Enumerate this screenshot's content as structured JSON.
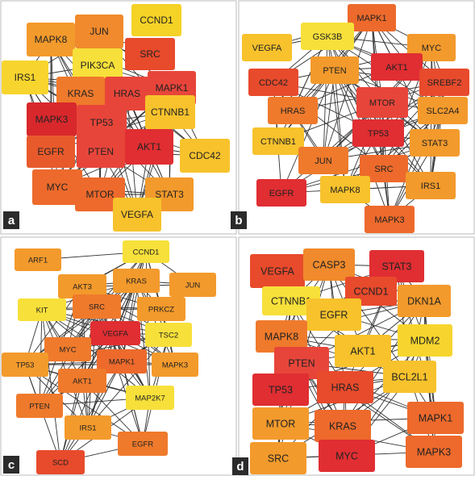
{
  "panels": [
    {
      "label": "a",
      "nodes": [
        {
          "label": "CCND1",
          "color": "#f5d226"
        },
        {
          "label": "MAPK8",
          "color": "#f39a2c"
        },
        {
          "label": "JUN",
          "color": "#f08a2c"
        },
        {
          "label": "SRC",
          "color": "#e84a2c"
        },
        {
          "label": "PIK3CA",
          "color": "#f7e03a"
        },
        {
          "label": "IRS1",
          "color": "#f7d52e"
        },
        {
          "label": "KRAS",
          "color": "#ef7a2c"
        },
        {
          "label": "HRAS",
          "color": "#e8453a"
        },
        {
          "label": "MAPK1",
          "color": "#e8453a"
        },
        {
          "label": "MAPK3",
          "color": "#d8282c"
        },
        {
          "label": "TP53",
          "color": "#e8453a"
        },
        {
          "label": "CTNNB1",
          "color": "#f7c22c"
        },
        {
          "label": "EGFR",
          "color": "#e85a2c"
        },
        {
          "label": "PTEN",
          "color": "#e8453a"
        },
        {
          "label": "AKT1",
          "color": "#e02e32"
        },
        {
          "label": "CDC42",
          "color": "#f7c22c"
        },
        {
          "label": "MYC",
          "color": "#ed6a2c"
        },
        {
          "label": "MTOR",
          "color": "#ed6a2c"
        },
        {
          "label": "STAT3",
          "color": "#f39a2c"
        },
        {
          "label": "VEGFA",
          "color": "#f7c22c"
        }
      ]
    },
    {
      "label": "b",
      "nodes": [
        {
          "label": "MAPK1",
          "color": "#ed6a2c"
        },
        {
          "label": "GSK3B",
          "color": "#f7e03a"
        },
        {
          "label": "VEGFA",
          "color": "#f7c22c"
        },
        {
          "label": "MYC",
          "color": "#f39a2c"
        },
        {
          "label": "PTEN",
          "color": "#f39a2c"
        },
        {
          "label": "AKT1",
          "color": "#e02e32"
        },
        {
          "label": "CDC42",
          "color": "#e84a2c"
        },
        {
          "label": "SREBF2",
          "color": "#e84a2c"
        },
        {
          "label": "HRAS",
          "color": "#ef7a2c"
        },
        {
          "label": "MTOR",
          "color": "#e8453a"
        },
        {
          "label": "SLC2A4",
          "color": "#f39a2c"
        },
        {
          "label": "CTNNB1",
          "color": "#f7c22c"
        },
        {
          "label": "TP53",
          "color": "#e02e32"
        },
        {
          "label": "STAT3",
          "color": "#f39a2c"
        },
        {
          "label": "JUN",
          "color": "#ef7a2c"
        },
        {
          "label": "SRC",
          "color": "#ed6a2c"
        },
        {
          "label": "IRS1",
          "color": "#f39a2c"
        },
        {
          "label": "EGFR",
          "color": "#e02e32"
        },
        {
          "label": "MAPK8",
          "color": "#f7c22c"
        },
        {
          "label": "MAPK3",
          "color": "#ed6a2c"
        }
      ]
    },
    {
      "label": "c",
      "nodes": [
        {
          "label": "CCND1",
          "color": "#f7e03a"
        },
        {
          "label": "ARF1",
          "color": "#f39a2c"
        },
        {
          "label": "KRAS",
          "color": "#f39a2c"
        },
        {
          "label": "AKT3",
          "color": "#f39a2c"
        },
        {
          "label": "JUN",
          "color": "#f39a2c"
        },
        {
          "label": "SRC",
          "color": "#ef7a2c"
        },
        {
          "label": "KIT",
          "color": "#f7e03a"
        },
        {
          "label": "PRKCZ",
          "color": "#f39a2c"
        },
        {
          "label": "VEGFA",
          "color": "#e02e32"
        },
        {
          "label": "TSC2",
          "color": "#f7e03a"
        },
        {
          "label": "MYC",
          "color": "#ef7a2c"
        },
        {
          "label": "TP53",
          "color": "#f39a2c"
        },
        {
          "label": "MAPK1",
          "color": "#ed6a2c"
        },
        {
          "label": "MAPK3",
          "color": "#f39a2c"
        },
        {
          "label": "AKT1",
          "color": "#ef7a2c"
        },
        {
          "label": "MAP2K7",
          "color": "#f7e03a"
        },
        {
          "label": "PTEN",
          "color": "#ef7a2c"
        },
        {
          "label": "IRS1",
          "color": "#f39a2c"
        },
        {
          "label": "EGFR",
          "color": "#ef7a2c"
        },
        {
          "label": "SCD",
          "color": "#e84a2c"
        }
      ]
    },
    {
      "label": "d",
      "nodes": [
        {
          "label": "VEGFA",
          "color": "#e84a2c"
        },
        {
          "label": "CASP3",
          "color": "#f08a2c"
        },
        {
          "label": "STAT3",
          "color": "#e02e32"
        },
        {
          "label": "CCND1",
          "color": "#e84a2c"
        },
        {
          "label": "CTNNB1",
          "color": "#f7e03a"
        },
        {
          "label": "DKN1A",
          "color": "#f39a2c"
        },
        {
          "label": "EGFR",
          "color": "#f7c22c"
        },
        {
          "label": "MAPK8",
          "color": "#ef7a2c"
        },
        {
          "label": "MDM2",
          "color": "#f7d52e"
        },
        {
          "label": "AKT1",
          "color": "#f7c22c"
        },
        {
          "label": "PTEN",
          "color": "#e8453a"
        },
        {
          "label": "BCL2L1",
          "color": "#f7c22c"
        },
        {
          "label": "TP53",
          "color": "#e02e32"
        },
        {
          "label": "HRAS",
          "color": "#e84a2c"
        },
        {
          "label": "MTOR",
          "color": "#f39a2c"
        },
        {
          "label": "KRAS",
          "color": "#ed6a2c"
        },
        {
          "label": "MAPK1",
          "color": "#ed6a2c"
        },
        {
          "label": "SRC",
          "color": "#f39a2c"
        },
        {
          "label": "MYC",
          "color": "#e02e32"
        },
        {
          "label": "MAPK3",
          "color": "#ed6a2c"
        }
      ]
    }
  ]
}
